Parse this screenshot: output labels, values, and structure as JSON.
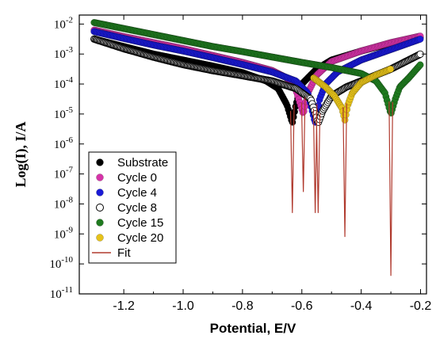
{
  "chart_data": {
    "type": "scatter",
    "xlabel": "Potential, E/V",
    "ylabel": "Log(I), I/A",
    "xlim": [
      -1.35,
      -0.18
    ],
    "ylim_log10": [
      -11,
      -1.7
    ],
    "y_scale": "log",
    "x_ticks": [
      "-1.2",
      "-1.0",
      "-0.8",
      "-0.6",
      "-0.4",
      "-0.2"
    ],
    "x_tick_values": [
      -1.2,
      -1.0,
      -0.8,
      -0.6,
      -0.4,
      -0.2
    ],
    "y_tick_exponents": [
      -2,
      -3,
      -4,
      -5,
      -6,
      -7,
      -8,
      -9,
      -10,
      -11
    ],
    "grid": false,
    "legend_position": "lower-left",
    "series": [
      {
        "name": "Substrate",
        "color": "#000000",
        "marker": "filled",
        "points": [
          [
            -1.3,
            -2.5
          ],
          [
            -1.2,
            -2.75
          ],
          [
            -1.1,
            -3.0
          ],
          [
            -1.0,
            -3.2
          ],
          [
            -0.9,
            -3.4
          ],
          [
            -0.8,
            -3.62
          ],
          [
            -0.72,
            -3.9
          ],
          [
            -0.68,
            -4.15
          ],
          [
            -0.65,
            -4.7
          ],
          [
            -0.632,
            -5.3
          ],
          [
            -0.62,
            -4.7
          ],
          [
            -0.6,
            -4.0
          ],
          [
            -0.55,
            -3.5
          ],
          [
            -0.5,
            -3.2
          ],
          [
            -0.4,
            -2.9
          ],
          [
            -0.3,
            -2.65
          ],
          [
            -0.2,
            -2.45
          ]
        ],
        "corrosion_potential": -0.632,
        "fit_minimum_log": -8.3
      },
      {
        "name": "Cycle 0",
        "color": "#d633a8",
        "marker": "filled",
        "points": [
          [
            -1.3,
            -2.2
          ],
          [
            -1.2,
            -2.42
          ],
          [
            -1.1,
            -2.62
          ],
          [
            -1.0,
            -2.82
          ],
          [
            -0.9,
            -3.05
          ],
          [
            -0.8,
            -3.28
          ],
          [
            -0.7,
            -3.55
          ],
          [
            -0.65,
            -3.8
          ],
          [
            -0.62,
            -4.2
          ],
          [
            -0.595,
            -5.0
          ],
          [
            -0.58,
            -4.3
          ],
          [
            -0.55,
            -3.7
          ],
          [
            -0.5,
            -3.25
          ],
          [
            -0.4,
            -2.9
          ],
          [
            -0.3,
            -2.62
          ],
          [
            -0.2,
            -2.4
          ]
        ],
        "corrosion_potential": -0.595,
        "fit_minimum_log": -7.6
      },
      {
        "name": "Cycle 4",
        "color": "#1a1ad6",
        "marker": "filled",
        "points": [
          [
            -1.3,
            -2.25
          ],
          [
            -1.2,
            -2.48
          ],
          [
            -1.1,
            -2.7
          ],
          [
            -1.0,
            -2.9
          ],
          [
            -0.9,
            -3.12
          ],
          [
            -0.8,
            -3.35
          ],
          [
            -0.7,
            -3.6
          ],
          [
            -0.62,
            -3.9
          ],
          [
            -0.58,
            -4.3
          ],
          [
            -0.555,
            -5.3
          ],
          [
            -0.54,
            -4.5
          ],
          [
            -0.52,
            -4.0
          ],
          [
            -0.48,
            -3.6
          ],
          [
            -0.4,
            -3.2
          ],
          [
            -0.3,
            -2.85
          ],
          [
            -0.2,
            -2.5
          ]
        ],
        "corrosion_potential": -0.555,
        "fit_minimum_log": -8.3
      },
      {
        "name": "Cycle 8",
        "color": "#ffffff",
        "stroke": "#000000",
        "marker": "open",
        "points": [
          [
            -1.3,
            -2.5
          ],
          [
            -1.2,
            -2.82
          ],
          [
            -1.1,
            -3.1
          ],
          [
            -1.0,
            -3.35
          ],
          [
            -0.9,
            -3.55
          ],
          [
            -0.8,
            -3.72
          ],
          [
            -0.7,
            -3.9
          ],
          [
            -0.62,
            -4.15
          ],
          [
            -0.57,
            -4.5
          ],
          [
            -0.545,
            -5.3
          ],
          [
            -0.53,
            -4.9
          ],
          [
            -0.5,
            -4.4
          ],
          [
            -0.45,
            -4.1
          ],
          [
            -0.4,
            -3.9
          ],
          [
            -0.3,
            -3.5
          ],
          [
            -0.2,
            -3.0
          ]
        ],
        "corrosion_potential": -0.545,
        "fit_minimum_log": -8.3
      },
      {
        "name": "Cycle 15",
        "color": "#1f7a1f",
        "marker": "filled",
        "points": [
          [
            -1.3,
            -1.95
          ],
          [
            -1.2,
            -2.15
          ],
          [
            -1.1,
            -2.35
          ],
          [
            -1.0,
            -2.55
          ],
          [
            -0.9,
            -2.75
          ],
          [
            -0.8,
            -2.92
          ],
          [
            -0.7,
            -3.1
          ],
          [
            -0.6,
            -3.28
          ],
          [
            -0.5,
            -3.45
          ],
          [
            -0.4,
            -3.65
          ],
          [
            -0.35,
            -3.9
          ],
          [
            -0.32,
            -4.3
          ],
          [
            -0.3,
            -5.0
          ],
          [
            -0.285,
            -4.5
          ],
          [
            -0.27,
            -4.1
          ],
          [
            -0.24,
            -3.8
          ],
          [
            -0.2,
            -3.35
          ]
        ],
        "corrosion_potential": -0.3,
        "fit_minimum_log": -10.4
      },
      {
        "name": "Cycle 20",
        "color": "#e6c21a",
        "marker": "filled",
        "points": [
          [
            -0.56,
            -3.8
          ],
          [
            -0.52,
            -4.1
          ],
          [
            -0.49,
            -4.4
          ],
          [
            -0.465,
            -4.8
          ],
          [
            -0.455,
            -5.2
          ],
          [
            -0.445,
            -4.7
          ],
          [
            -0.43,
            -4.3
          ],
          [
            -0.4,
            -3.95
          ],
          [
            -0.35,
            -3.7
          ],
          [
            -0.3,
            -3.5
          ]
        ],
        "corrosion_potential": -0.455,
        "fit_minimum_log": -9.1
      }
    ],
    "fit": {
      "name": "Fit",
      "color": "#b03a2e"
    }
  }
}
